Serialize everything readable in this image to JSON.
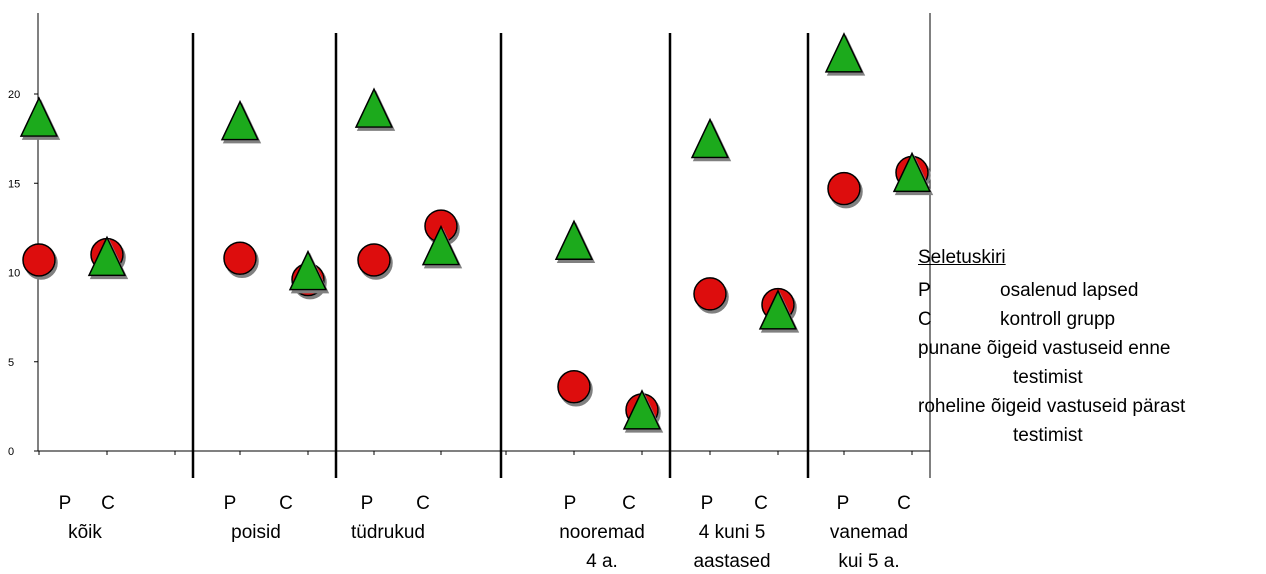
{
  "colors": {
    "before": "#dd1111",
    "after": "#1aaa1a",
    "outline": "#000000"
  },
  "chart_data": {
    "type": "scatter",
    "ylim": [
      0,
      24
    ],
    "yticks": [
      0,
      5,
      10,
      15,
      20
    ],
    "grid": false,
    "groups": [
      {
        "labels": [
          "kõik"
        ],
        "P": {
          "before": 10.7,
          "after": 18.6
        },
        "C": {
          "before": 11.0,
          "after": 10.8
        }
      },
      {
        "labels": [
          "poisid"
        ],
        "P": {
          "before": 10.8,
          "after": 18.4
        },
        "C": {
          "before": 9.6,
          "after": 10.0
        }
      },
      {
        "labels": [
          "tüdrukud"
        ],
        "P": {
          "before": 10.7,
          "after": 19.1
        },
        "C": {
          "before": 12.6,
          "after": 11.4
        }
      },
      {
        "labels": [
          "nooremad",
          "4 a."
        ],
        "P": {
          "before": 3.6,
          "after": 11.7
        },
        "C": {
          "before": 2.3,
          "after": 2.2
        }
      },
      {
        "labels": [
          "4 kuni 5",
          "aastased"
        ],
        "P": {
          "before": 8.8,
          "after": 17.4
        },
        "C": {
          "before": 8.2,
          "after": 7.8
        }
      },
      {
        "labels": [
          "vanemad",
          "kui 5 a."
        ],
        "P": {
          "before": 14.7,
          "after": 22.2
        },
        "C": {
          "before": 15.6,
          "after": 15.5
        }
      }
    ],
    "series": [
      {
        "name": "punane",
        "marker": "circle"
      },
      {
        "name": "roheline",
        "marker": "triangle"
      }
    ]
  },
  "axis": {
    "p_label": "P",
    "c_label": "C"
  },
  "legend": {
    "title": "Seletuskiri",
    "rows": [
      {
        "key": "P",
        "text": "osalenud lapsed"
      },
      {
        "key": "C",
        "text": "kontroll grupp"
      },
      {
        "key": "punane",
        "text": "õigeid vastuseid enne",
        "cont": "testimist"
      },
      {
        "key": "roheline",
        "text": "õigeid vastuseid pärast",
        "cont": "testimist"
      }
    ]
  }
}
